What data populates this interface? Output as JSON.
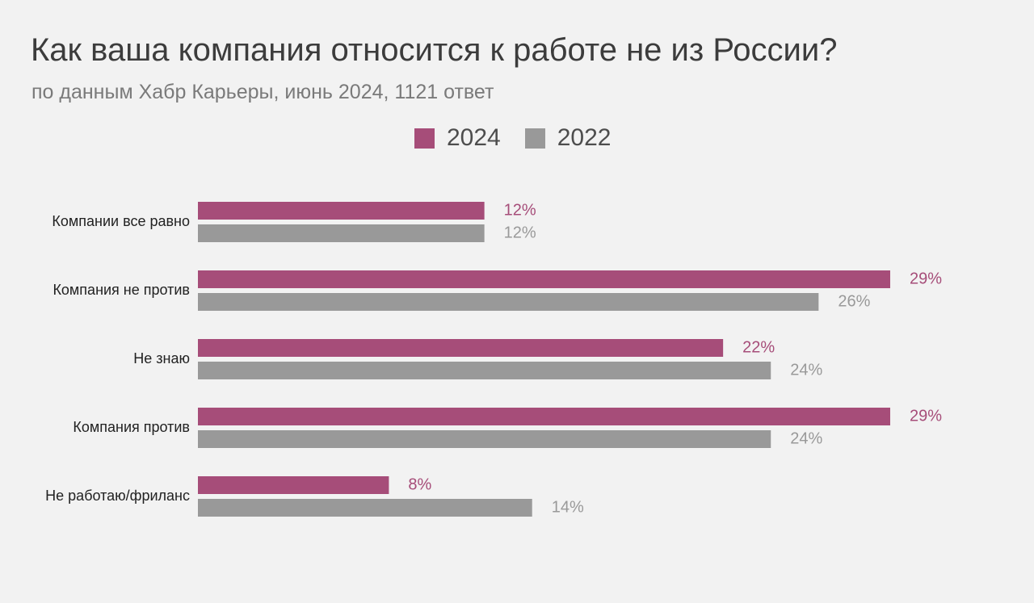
{
  "chart_data": {
    "type": "bar",
    "orientation": "horizontal",
    "title": "Как ваша компания относится к работе не из России?",
    "subtitle": "по данным Хабр Карьеры, июнь 2024, 1121 ответ",
    "categories": [
      "Компании все равно",
      "Компания не против",
      "Не знаю",
      "Компания против",
      "Не работаю/фриланс"
    ],
    "series": [
      {
        "name": "2024",
        "color": "#a64d79",
        "values": [
          12,
          29,
          22,
          29,
          8
        ],
        "labels": [
          "12%",
          "29%",
          "22%",
          "29%",
          "8%"
        ]
      },
      {
        "name": "2022",
        "color": "#999999",
        "values": [
          12,
          26,
          24,
          24,
          14
        ],
        "labels": [
          "12%",
          "26%",
          "24%",
          "24%",
          "14%"
        ]
      }
    ],
    "xlim": [
      0,
      29
    ],
    "grid": false,
    "legend_position": "top-center",
    "value_unit": "%"
  }
}
